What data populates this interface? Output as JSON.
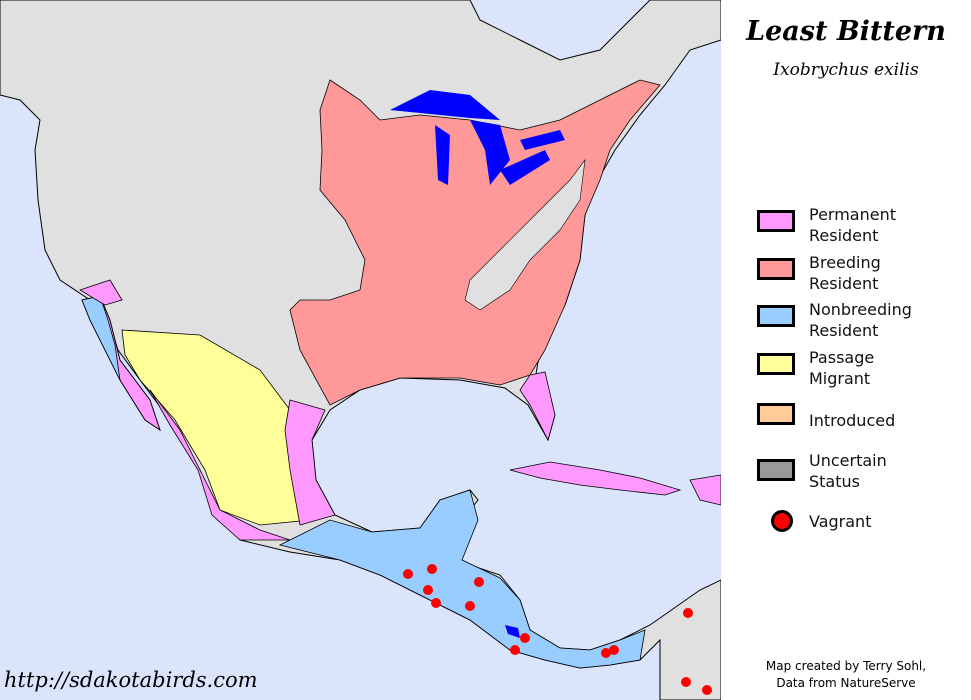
{
  "title": "Least Bittern",
  "scientific_name": "Ixobrychus exilis",
  "legend": [
    {
      "label_line1": "Permanent",
      "label_line2": "Resident",
      "color": "#ff99ff"
    },
    {
      "label_line1": "Breeding",
      "label_line2": "Resident",
      "color": "#ff9999"
    },
    {
      "label_line1": "Nonbreeding",
      "label_line2": "Resident",
      "color": "#99ccff"
    },
    {
      "label_line1": "Passage",
      "label_line2": "Migrant",
      "color": "#ffff99"
    },
    {
      "label_line1": "Introduced",
      "label_line2": "",
      "color": "#ffcc99"
    },
    {
      "label_line1": "Uncertain",
      "label_line2": "Status",
      "color": "#999999"
    },
    {
      "label_line1": "Vagrant",
      "label_line2": "",
      "color": "#ff0000"
    }
  ],
  "website": "http://sdakotabirds.com",
  "credit_line1": "Map created by Terry Sohl,",
  "credit_line2": "Data from NatureServe",
  "colors": {
    "ocean": "#dae4fb",
    "land": "#e0e0e0",
    "water": "#0000ff",
    "border": "#000000"
  }
}
